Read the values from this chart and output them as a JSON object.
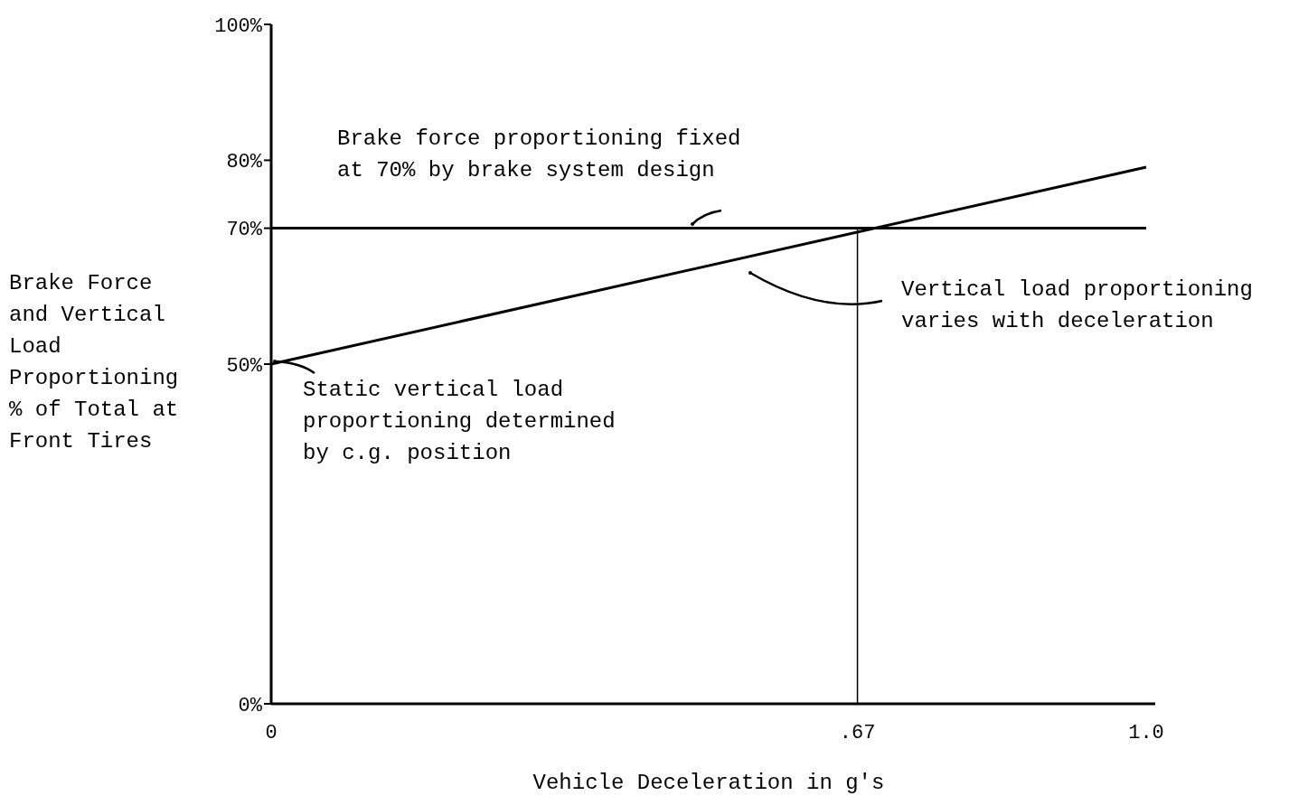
{
  "chart_data": {
    "type": "line",
    "xlabel": "Vehicle Deceleration in g's",
    "ylabel": "Brake Force\nand Vertical\nLoad\nProportioning\n% of Total at\nFront Tires",
    "series": [
      {
        "color": "#000000",
        "x": [
          0,
          1.0
        ],
        "values": [
          70,
          70
        ]
      },
      {
        "color": "#000000",
        "x": [
          0,
          1.0
        ],
        "values": [
          50,
          79
        ]
      },
      {
        "color": "#000000",
        "x": [
          0.67,
          0.67
        ],
        "values": [
          0,
          70
        ]
      }
    ],
    "xlim": [
      0,
      1.0
    ],
    "xticks": [
      {
        "value": 0,
        "label": "0"
      },
      {
        "value": 0.67,
        "label": ".67"
      },
      {
        "value": 1.0,
        "label": "1.0"
      }
    ],
    "ylim": [
      0,
      100
    ],
    "yticks": [
      {
        "value": 0,
        "label": "0%"
      },
      {
        "value": 50,
        "label": "50%"
      },
      {
        "value": 70,
        "label": "70%"
      },
      {
        "value": 80,
        "label": "80%"
      },
      {
        "value": 100,
        "label": "100%"
      }
    ],
    "annotations": [
      "Brake force proportioning fixed\nat 70% by brake system design",
      "Vertical load proportioning\nvaries with deceleration",
      "Static vertical load\nproportioning determined\nby c.g. position"
    ],
    "grid": false,
    "line_style": "solid"
  }
}
